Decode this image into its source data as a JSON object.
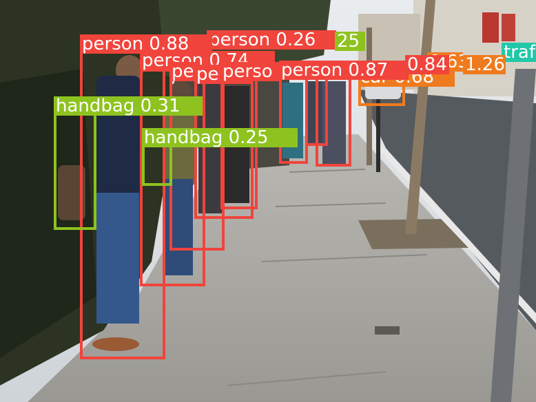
{
  "colors": {
    "person": "#f0443c",
    "handbag": "#8ec31f",
    "car": "#f07b1e",
    "traffic_light": "#22c7a8",
    "label_text": "#ffffff"
  },
  "detections": [
    {
      "class": "person",
      "label": "person 0.88",
      "color": "person"
    },
    {
      "class": "person",
      "label": "person 0.74",
      "color": "person"
    },
    {
      "class": "person",
      "label": "person 0.26",
      "color": "person"
    },
    {
      "class": "person",
      "label": "pe",
      "color": "person"
    },
    {
      "class": "person",
      "label": "pe",
      "color": "person"
    },
    {
      "class": "person",
      "label": "perso",
      "color": "person"
    },
    {
      "class": "person",
      "label": "person 0.87",
      "color": "person"
    },
    {
      "class": "person",
      "label": "0.84",
      "color": "person"
    },
    {
      "class": "handbag",
      "label": "handbag 0.31",
      "color": "handbag"
    },
    {
      "class": "handbag",
      "label": "handbag 0.25",
      "color": "handbag"
    },
    {
      "class": "handbag",
      "label": "25",
      "color": "handbag"
    },
    {
      "class": "car",
      "label": "car 0.68",
      "color": "car"
    },
    {
      "class": "car",
      "label": "0.63",
      "color": "car"
    },
    {
      "class": "car",
      "label": "1.26",
      "color": "car"
    },
    {
      "class": "traffic light",
      "label": "traf",
      "color": "traffic_light"
    }
  ]
}
